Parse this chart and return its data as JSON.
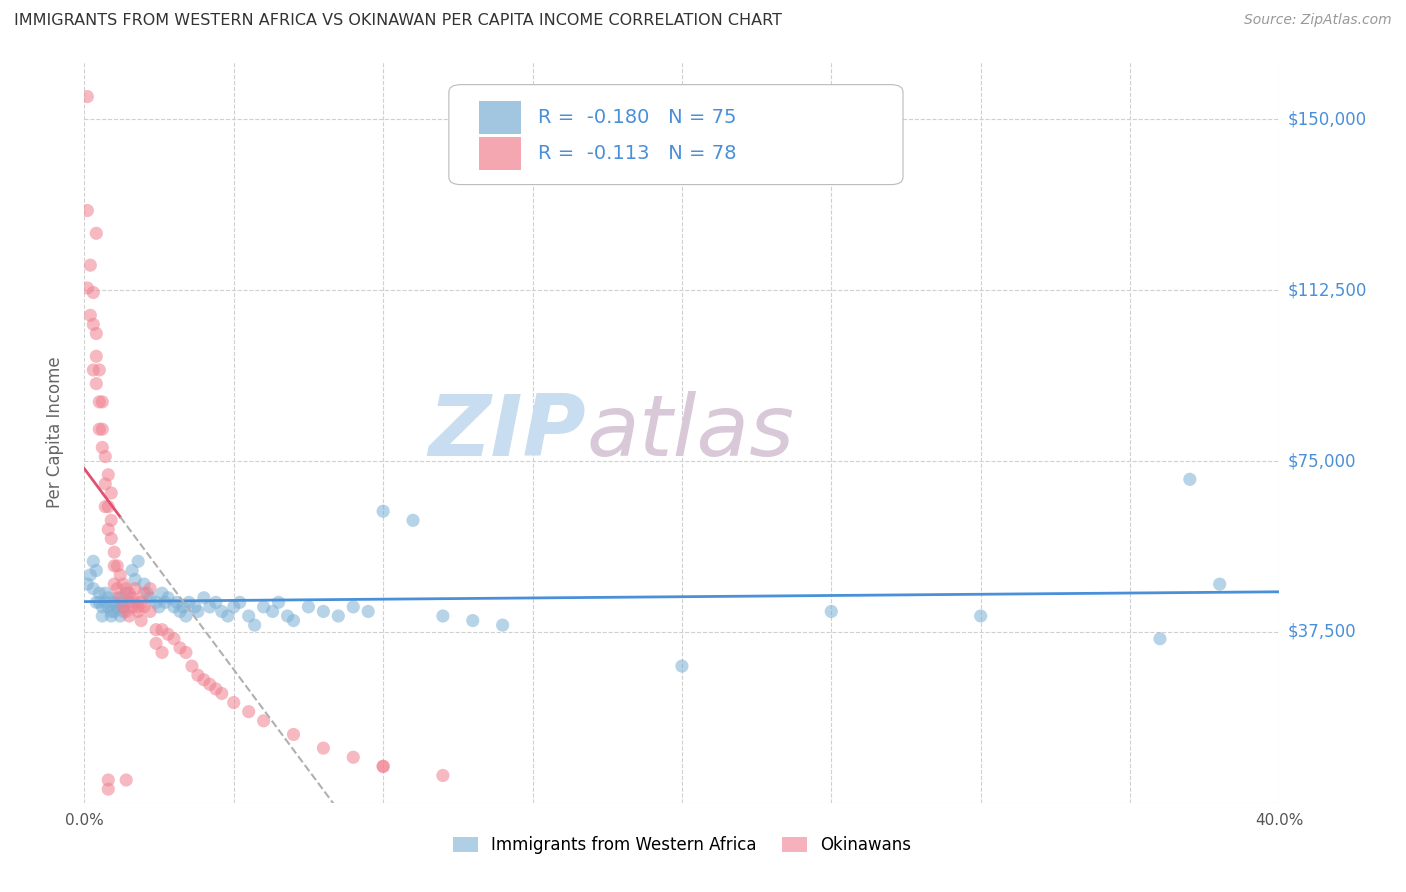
{
  "title": "IMMIGRANTS FROM WESTERN AFRICA VS OKINAWAN PER CAPITA INCOME CORRELATION CHART",
  "source": "Source: ZipAtlas.com",
  "ylabel": "Per Capita Income",
  "xlim": [
    0.0,
    0.4
  ],
  "ylim": [
    0,
    162500
  ],
  "yticks": [
    0,
    37500,
    75000,
    112500,
    150000
  ],
  "ytick_labels": [
    "",
    "$37,500",
    "$75,000",
    "$112,500",
    "$150,000"
  ],
  "xticks": [
    0.0,
    0.05,
    0.1,
    0.15,
    0.2,
    0.25,
    0.3,
    0.35,
    0.4
  ],
  "R_blue": -0.18,
  "N_blue": 75,
  "R_pink": -0.113,
  "N_pink": 78,
  "blue_color": "#7bafd4",
  "pink_color": "#f08090",
  "trend_blue_color": "#4a90d9",
  "trend_pink_color": "#e05070",
  "trend_dashed_color": "#b0b0b0",
  "grid_color": "#d0d0d0",
  "title_color": "#333333",
  "axis_label_color": "#666666",
  "right_label_color": "#4a90d9",
  "watermark_zip_color": "#c8ddf0",
  "watermark_atlas_color": "#d8c8d8",
  "blue_scatter_x": [
    0.001,
    0.002,
    0.003,
    0.003,
    0.004,
    0.004,
    0.005,
    0.005,
    0.006,
    0.006,
    0.007,
    0.007,
    0.008,
    0.008,
    0.009,
    0.009,
    0.01,
    0.01,
    0.011,
    0.011,
    0.012,
    0.012,
    0.013,
    0.013,
    0.014,
    0.015,
    0.016,
    0.017,
    0.018,
    0.02,
    0.021,
    0.022,
    0.024,
    0.025,
    0.026,
    0.027,
    0.028,
    0.03,
    0.031,
    0.032,
    0.033,
    0.034,
    0.035,
    0.037,
    0.038,
    0.04,
    0.042,
    0.044,
    0.046,
    0.048,
    0.05,
    0.052,
    0.055,
    0.057,
    0.06,
    0.063,
    0.065,
    0.068,
    0.07,
    0.075,
    0.08,
    0.085,
    0.09,
    0.095,
    0.1,
    0.11,
    0.12,
    0.13,
    0.14,
    0.2,
    0.25,
    0.3,
    0.36,
    0.37,
    0.38
  ],
  "blue_scatter_y": [
    48000,
    50000,
    53000,
    47000,
    44000,
    51000,
    46000,
    44000,
    43000,
    41000,
    44000,
    46000,
    45000,
    43000,
    42000,
    41000,
    44000,
    42000,
    45000,
    43000,
    41000,
    44000,
    43000,
    42000,
    46000,
    44000,
    51000,
    49000,
    53000,
    48000,
    46000,
    45000,
    44000,
    43000,
    46000,
    44000,
    45000,
    43000,
    44000,
    42000,
    43000,
    41000,
    44000,
    43000,
    42000,
    45000,
    43000,
    44000,
    42000,
    41000,
    43000,
    44000,
    41000,
    39000,
    43000,
    42000,
    44000,
    41000,
    40000,
    43000,
    42000,
    41000,
    43000,
    42000,
    64000,
    62000,
    41000,
    40000,
    39000,
    30000,
    42000,
    41000,
    36000,
    71000,
    48000
  ],
  "pink_scatter_x": [
    0.001,
    0.001,
    0.001,
    0.002,
    0.002,
    0.003,
    0.003,
    0.003,
    0.004,
    0.004,
    0.004,
    0.005,
    0.005,
    0.005,
    0.006,
    0.006,
    0.006,
    0.007,
    0.007,
    0.007,
    0.008,
    0.008,
    0.008,
    0.009,
    0.009,
    0.009,
    0.01,
    0.01,
    0.01,
    0.011,
    0.011,
    0.012,
    0.012,
    0.013,
    0.013,
    0.014,
    0.014,
    0.015,
    0.015,
    0.016,
    0.016,
    0.017,
    0.017,
    0.018,
    0.018,
    0.019,
    0.019,
    0.02,
    0.02,
    0.022,
    0.022,
    0.024,
    0.024,
    0.026,
    0.026,
    0.028,
    0.03,
    0.032,
    0.034,
    0.036,
    0.038,
    0.04,
    0.042,
    0.044,
    0.046,
    0.05,
    0.055,
    0.06,
    0.07,
    0.08,
    0.09,
    0.1,
    0.12,
    0.004,
    0.008,
    0.1,
    0.014,
    0.008
  ],
  "pink_scatter_y": [
    130000,
    113000,
    155000,
    118000,
    107000,
    112000,
    105000,
    95000,
    103000,
    98000,
    92000,
    88000,
    95000,
    82000,
    88000,
    82000,
    78000,
    76000,
    70000,
    65000,
    72000,
    65000,
    60000,
    68000,
    62000,
    58000,
    55000,
    52000,
    48000,
    52000,
    47000,
    50000,
    45000,
    48000,
    43000,
    47000,
    42000,
    46000,
    41000,
    45000,
    43000,
    47000,
    44000,
    43000,
    42000,
    44000,
    40000,
    46000,
    43000,
    47000,
    42000,
    38000,
    35000,
    38000,
    33000,
    37000,
    36000,
    34000,
    33000,
    30000,
    28000,
    27000,
    26000,
    25000,
    24000,
    22000,
    20000,
    18000,
    15000,
    12000,
    10000,
    8000,
    6000,
    125000,
    5000,
    8000,
    5000,
    3000
  ]
}
